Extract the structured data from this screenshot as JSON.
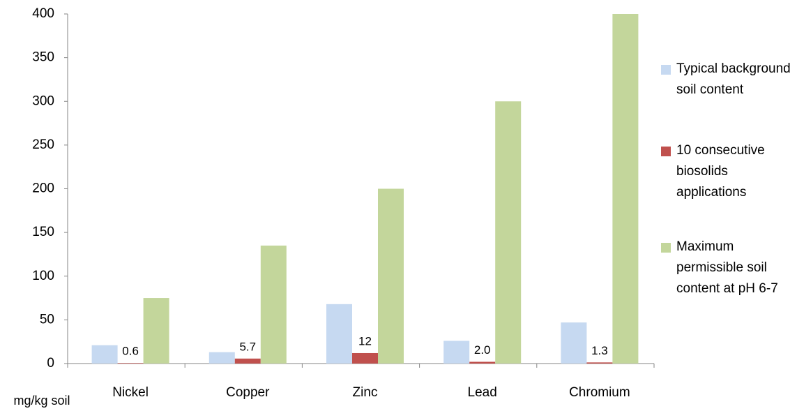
{
  "chart_data": {
    "type": "bar",
    "y_label": "mg/kg soil",
    "categories": [
      "Nickel",
      "Copper",
      "Zinc",
      "Lead",
      "Chromium"
    ],
    "series": [
      {
        "name": "Typical background soil content",
        "color": "#c6d9f1",
        "values": [
          21,
          13,
          68,
          26,
          47
        ]
      },
      {
        "name": "10 consecutive biosolids applications",
        "color": "#c0504d",
        "values": [
          0.6,
          5.7,
          12,
          2,
          1.3
        ],
        "value_labels": [
          "0.6",
          "5.7",
          "12",
          "2.0",
          "1.3"
        ]
      },
      {
        "name": "Maximum permissible soil content at pH 6-7",
        "color": "#c3d69b",
        "values": [
          75,
          135,
          200,
          300,
          400
        ]
      }
    ],
    "ylim": [
      0,
      400
    ],
    "yticks": [
      0,
      50,
      100,
      150,
      200,
      250,
      300,
      350,
      400
    ],
    "grid": false,
    "legend": "right"
  }
}
